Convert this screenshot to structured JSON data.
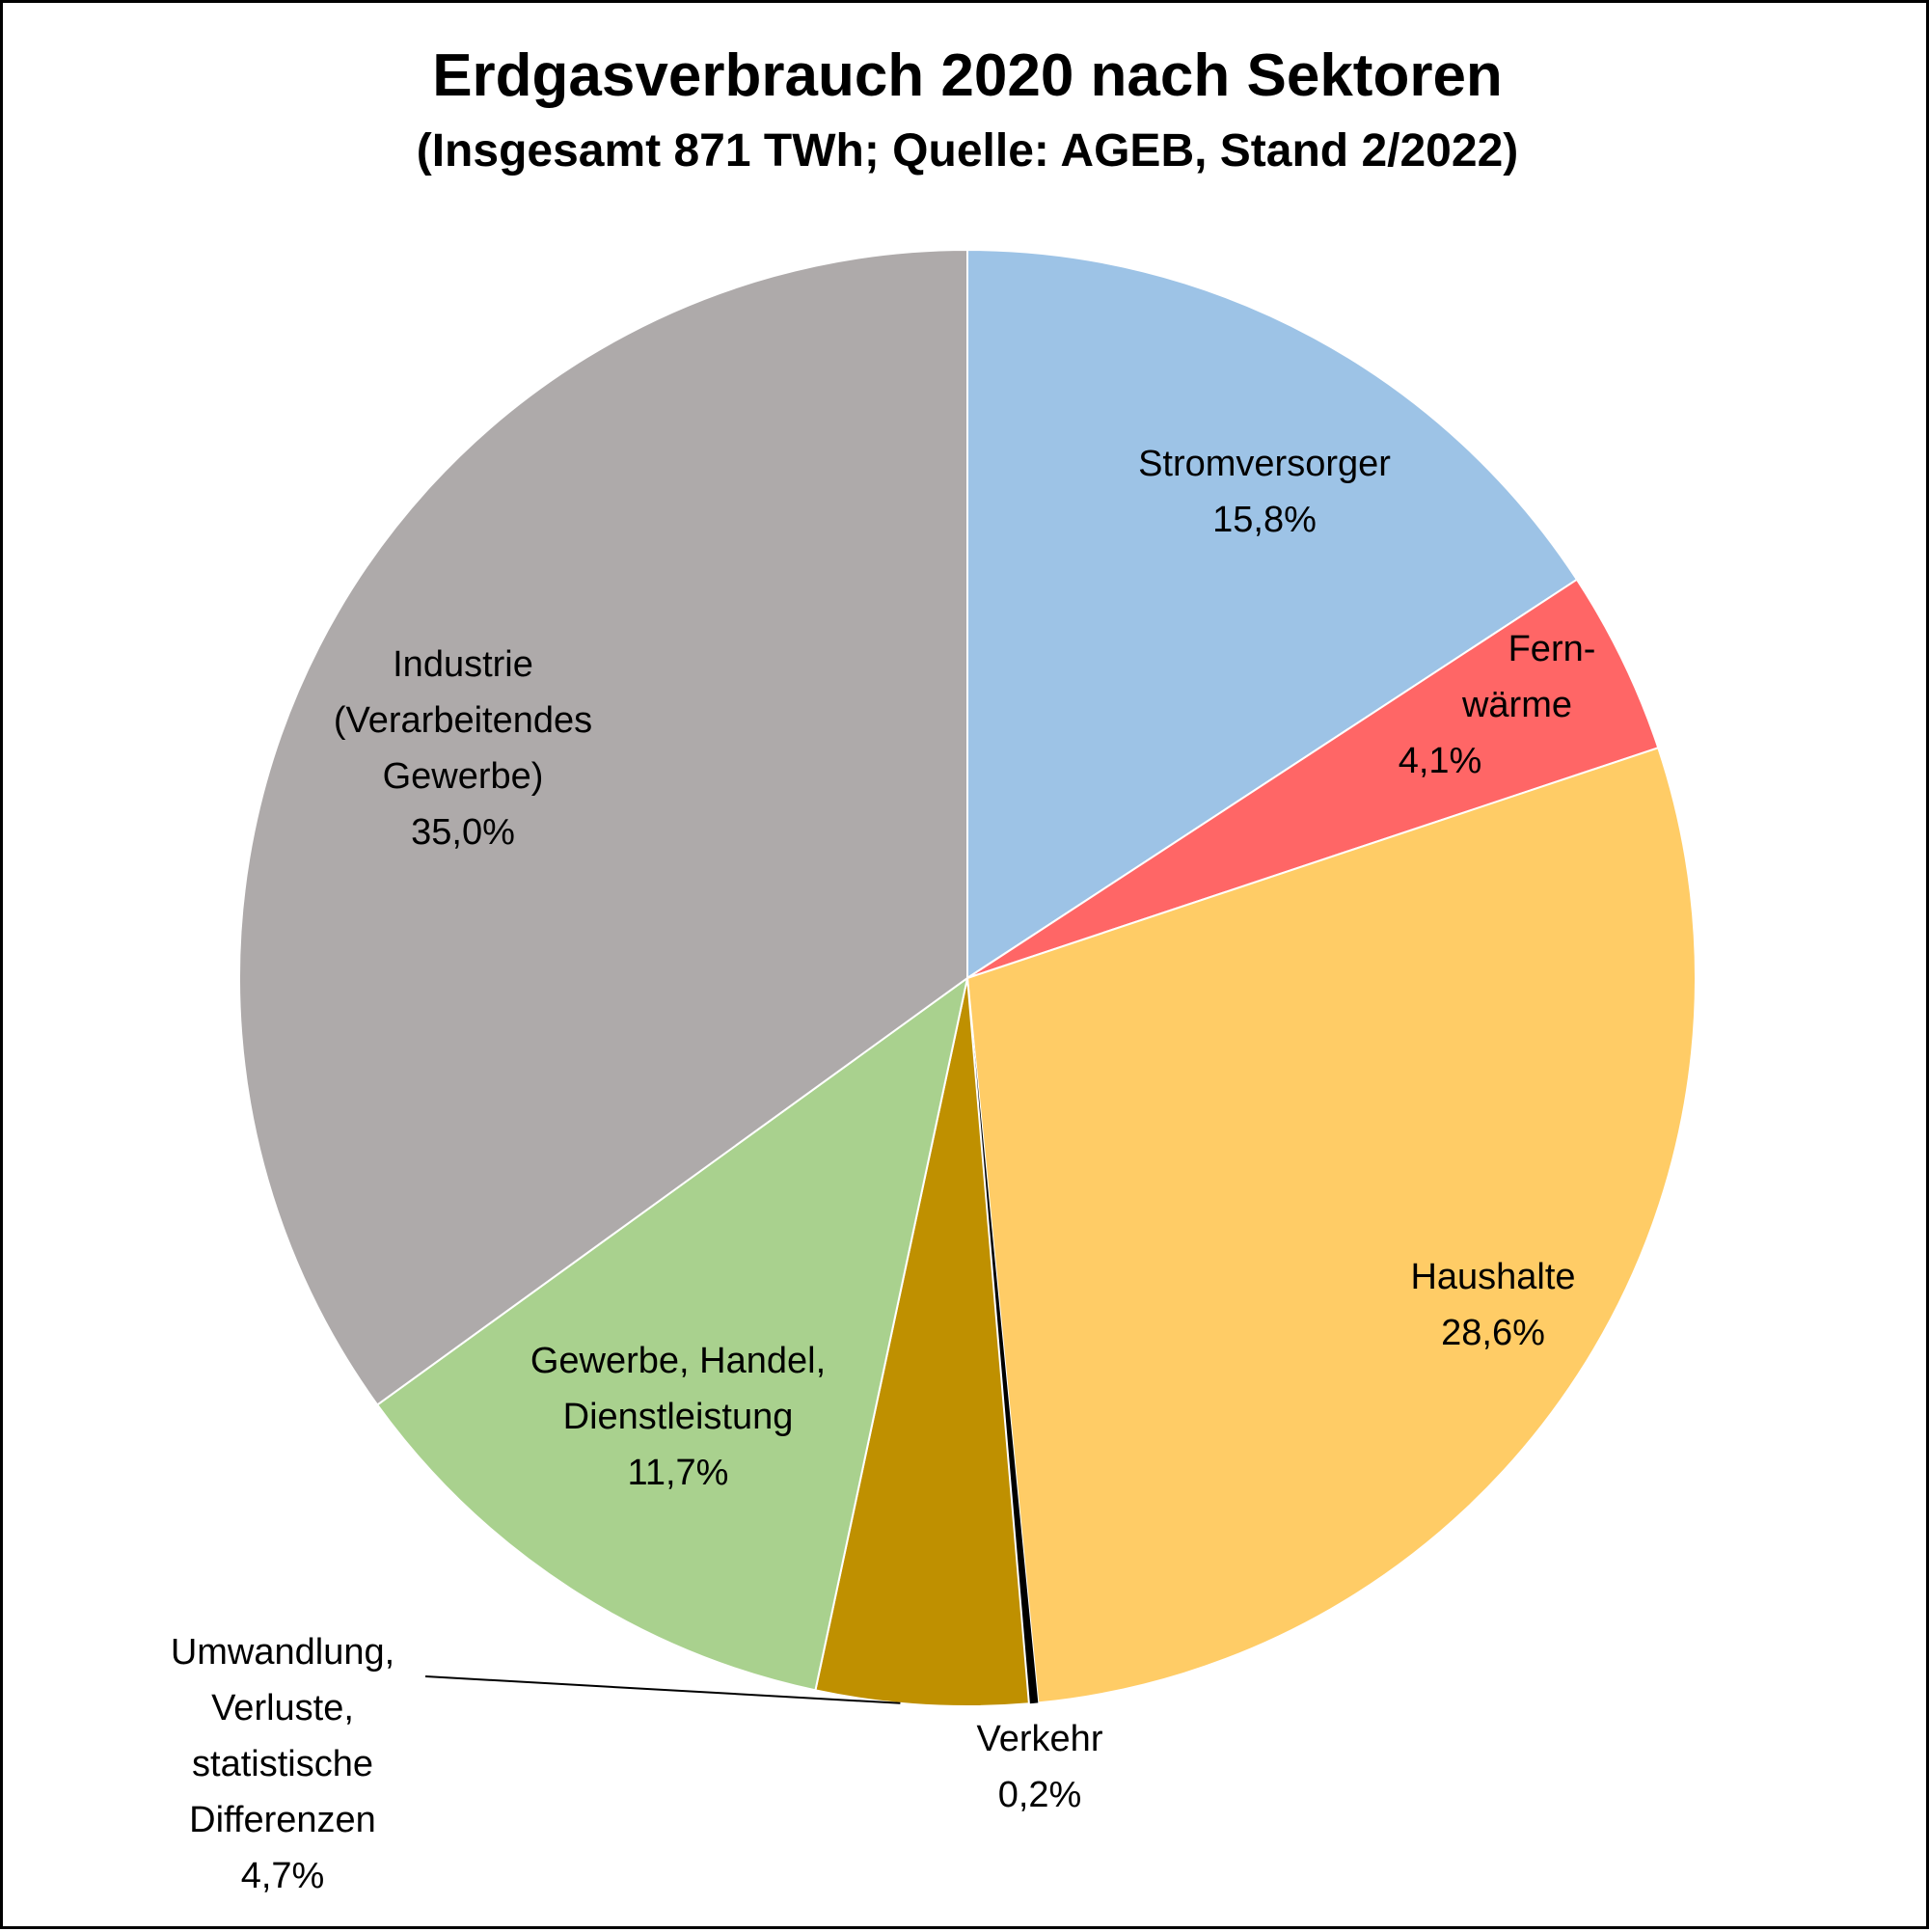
{
  "chart_data": {
    "type": "pie",
    "title": "Erdgasverbrauch 2020 nach Sektoren",
    "subtitle": "(Insgesamt 871 TWh; Quelle: AGEB, Stand 2/2022)",
    "slices": [
      {
        "label_lines": [
          "Stromversorger"
        ],
        "value_label": "15,8%",
        "value": 15.8,
        "color": "#9DC3E6"
      },
      {
        "label_lines": [
          "Fern-",
          "wärme"
        ],
        "value_label": "4,1%",
        "value": 4.1,
        "color": "#FF6666"
      },
      {
        "label_lines": [
          "Haushalte"
        ],
        "value_label": "28,6%",
        "value": 28.6,
        "color": "#FFCC66"
      },
      {
        "label_lines": [
          "Verkehr"
        ],
        "value_label": "0,2%",
        "value": 0.2,
        "color": "#000000"
      },
      {
        "label_lines": [
          "Umwandlung,",
          "Verluste,",
          "statistische",
          "Differenzen"
        ],
        "value_label": "4,7%",
        "value": 4.7,
        "color": "#BF9000"
      },
      {
        "label_lines": [
          "Gewerbe, Handel,",
          "Dienstleistung"
        ],
        "value_label": "11,7%",
        "value": 11.7,
        "color": "#A9D18E"
      },
      {
        "label_lines": [
          "Industrie",
          "(Verarbeitendes",
          "Gewerbe)"
        ],
        "value_label": "35,0%",
        "value": 35.0,
        "color": "#AEAAAA"
      }
    ]
  }
}
